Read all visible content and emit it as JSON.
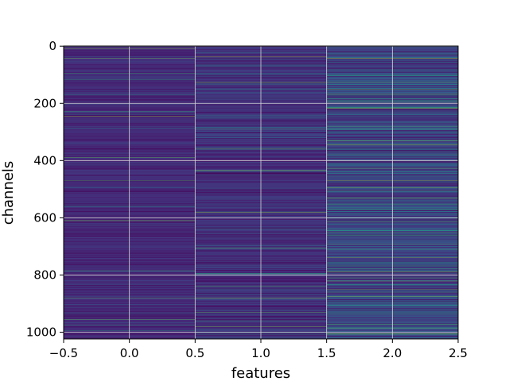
{
  "chart_data": {
    "type": "heatmap",
    "title": "",
    "xlabel": "features",
    "ylabel": "channels",
    "n_columns": 3,
    "n_rows": 1024,
    "x_centers": [
      0,
      1,
      2
    ],
    "xlim": [
      -0.5,
      2.5
    ],
    "ylim": [
      1023.5,
      -0.5
    ],
    "y_inverted": true,
    "x_ticks": [
      -0.5,
      0.0,
      0.5,
      1.0,
      1.5,
      2.0,
      2.5
    ],
    "x_tick_labels": [
      "−0.5",
      "0.0",
      "0.5",
      "1.0",
      "1.5",
      "2.0",
      "2.5"
    ],
    "y_ticks": [
      0,
      200,
      400,
      600,
      800,
      1000
    ],
    "y_tick_labels": [
      "0",
      "200",
      "400",
      "600",
      "800",
      "1000"
    ],
    "grid": true,
    "colormap": "viridis",
    "colormap_stops": [
      "#440154",
      "#482878",
      "#3e4989",
      "#31688e",
      "#26828e",
      "#1f9e89",
      "#35b779",
      "#6ece58",
      "#b5de2b",
      "#fde725"
    ],
    "column_mean_intensity": [
      0.12,
      0.13,
      0.2
    ],
    "column_spread": [
      0.08,
      0.1,
      0.16
    ],
    "bright_rows": [
      {
        "column": 0,
        "rows": [
          8,
          42,
          95,
          118,
          170,
          228,
          245,
          390,
          470,
          560,
          610,
          785,
          880,
          955,
          975,
          995
        ]
      },
      {
        "column": 1,
        "rows": [
          38,
          125,
          130,
          290,
          358,
          435,
          580,
          705,
          795,
          840,
          880,
          930,
          960,
          980
        ]
      },
      {
        "column": 2,
        "rows": [
          42,
          100,
          125,
          150,
          168,
          185,
          215,
          290,
          330,
          345,
          410,
          440,
          470,
          530,
          600,
          640,
          650,
          660,
          710,
          740,
          790,
          850,
          875,
          905,
          935,
          985,
          1005
        ]
      }
    ]
  }
}
